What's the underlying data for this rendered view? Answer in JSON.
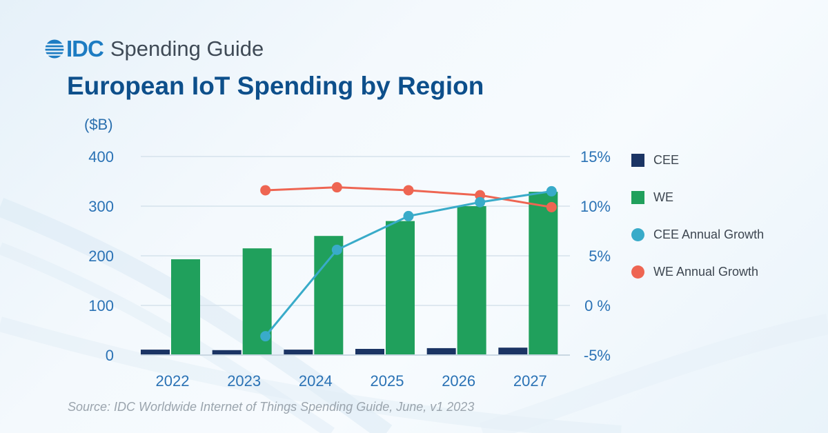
{
  "header": {
    "logo_brand": "IDC",
    "logo_product": "Spending Guide",
    "title": "European IoT Spending by Region"
  },
  "colors": {
    "cee": "#1b3464",
    "we": "#20a05c",
    "cee_growth": "#39abc9",
    "we_growth": "#ee6552",
    "axis_text": "#2a72b5",
    "title": "#0d4f8b",
    "grid": "#d5e2ec"
  },
  "chart_data": {
    "type": "bar",
    "title": "European IoT Spending by Region",
    "xlabel": "",
    "ylabel": "($B)",
    "y2label": "",
    "categories": [
      "2022",
      "2023",
      "2024",
      "2025",
      "2026",
      "2027"
    ],
    "ylim": [
      0,
      400
    ],
    "yticks": [
      "0",
      "100",
      "200",
      "300",
      "400"
    ],
    "y2lim": [
      -5,
      15
    ],
    "y2ticks": [
      "-5%",
      "0 %",
      "5%",
      "10%",
      "15%"
    ],
    "grid": true,
    "legend_position": "right",
    "series": [
      {
        "name": "CEE",
        "type": "bar",
        "axis": "left",
        "values": [
          11,
          10,
          11,
          12.5,
          14,
          15
        ]
      },
      {
        "name": "WE",
        "type": "bar",
        "axis": "left",
        "values": [
          193,
          215,
          240,
          270,
          300,
          329
        ]
      },
      {
        "name": "CEE Annual Growth",
        "type": "line",
        "axis": "right",
        "values": [
          null,
          -3.1,
          5.6,
          9.0,
          10.4,
          11.5
        ]
      },
      {
        "name": "WE Annual Growth",
        "type": "line",
        "axis": "right",
        "values": [
          null,
          11.6,
          11.9,
          11.6,
          11.1,
          9.9
        ]
      }
    ],
    "source": "Source: IDC Worldwide Internet of Things Spending Guide, June, v1 2023"
  }
}
